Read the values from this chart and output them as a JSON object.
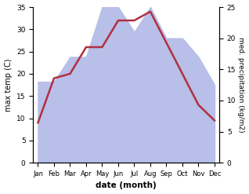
{
  "months": [
    "Jan",
    "Feb",
    "Mar",
    "Apr",
    "May",
    "Jun",
    "Jul",
    "Aug",
    "Sep",
    "Oct",
    "Nov",
    "Dec"
  ],
  "temp": [
    9,
    19,
    20,
    26,
    26,
    32,
    32,
    34,
    27,
    20,
    13,
    9.5
  ],
  "precip": [
    13,
    13,
    17,
    17,
    25,
    25,
    21,
    25,
    20,
    20,
    17,
    12.5
  ],
  "temp_color": "#b03040",
  "precip_fill_color": "#b8bfe8",
  "title": "",
  "ylabel_left": "max temp (C)",
  "ylabel_right": "med. precipitation (kg/m2)",
  "xlabel": "date (month)",
  "ylim_left": [
    0,
    35
  ],
  "ylim_right": [
    0,
    25
  ],
  "yticks_left": [
    0,
    5,
    10,
    15,
    20,
    25,
    30,
    35
  ],
  "yticks_right": [
    0,
    5,
    10,
    15,
    20,
    25
  ],
  "bg_color": "#ffffff",
  "line_width": 1.8
}
